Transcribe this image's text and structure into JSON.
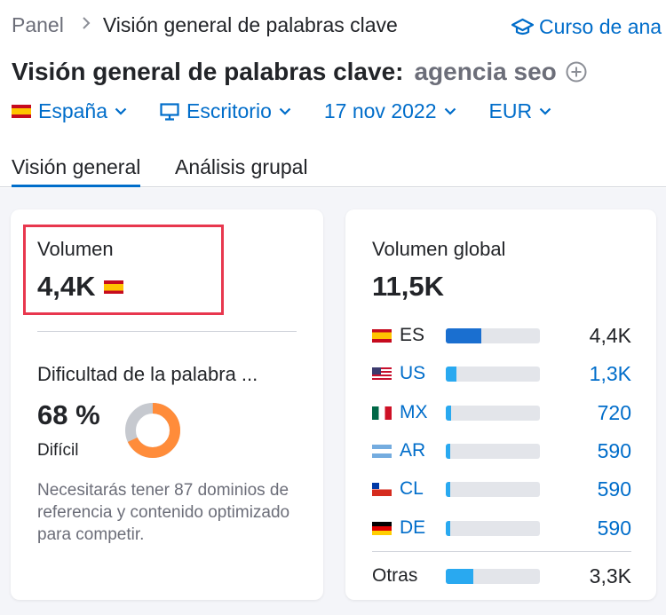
{
  "breadcrumb": {
    "home": "Panel",
    "current": "Visión general de palabras clave"
  },
  "course_link": "Curso de ana",
  "title": {
    "main": "Visión general de palabras clave:",
    "keyword": "agencia seo"
  },
  "filters": {
    "country": "España",
    "device": "Escritorio",
    "date": "17 nov 2022",
    "currency": "EUR"
  },
  "tabs": [
    {
      "label": "Visión general",
      "active": true
    },
    {
      "label": "Análisis grupal",
      "active": false
    }
  ],
  "volume": {
    "label": "Volumen",
    "value": "4,4K"
  },
  "keyword_difficulty": {
    "label": "Dificultad de la palabra ...",
    "value": "68 %",
    "level": "Difícil",
    "percent": 68,
    "description": "Necesitarás tener 87 dominios de referencia y contenido optimizado para competir.",
    "colors": {
      "filled": "#ff8c3a",
      "empty": "#c6c9cf"
    }
  },
  "global_volume": {
    "label": "Volumen global",
    "value": "11,5K",
    "countries": [
      {
        "code": "ES",
        "value": "4,4K",
        "share": 0.38,
        "is_link": false,
        "flag": "spain-flag-icon",
        "bar_color": "#1a6fd0"
      },
      {
        "code": "US",
        "value": "1,3K",
        "share": 0.11,
        "is_link": true,
        "flag": "usa-flag-icon",
        "bar_color": "#29a9f0"
      },
      {
        "code": "MX",
        "value": "720",
        "share": 0.06,
        "is_link": true,
        "flag": "mexico-flag-icon",
        "bar_color": "#29a9f0"
      },
      {
        "code": "AR",
        "value": "590",
        "share": 0.05,
        "is_link": true,
        "flag": "argentina-flag-icon",
        "bar_color": "#29a9f0"
      },
      {
        "code": "CL",
        "value": "590",
        "share": 0.05,
        "is_link": true,
        "flag": "chile-flag-icon",
        "bar_color": "#29a9f0"
      },
      {
        "code": "DE",
        "value": "590",
        "share": 0.05,
        "is_link": true,
        "flag": "germany-flag-icon",
        "bar_color": "#29a9f0"
      }
    ],
    "others": {
      "label": "Otras",
      "value": "3,3K",
      "share": 0.29,
      "bar_color": "#29a9f0"
    }
  },
  "colors": {
    "link": "#006dca",
    "highlight": "#e8374e"
  }
}
